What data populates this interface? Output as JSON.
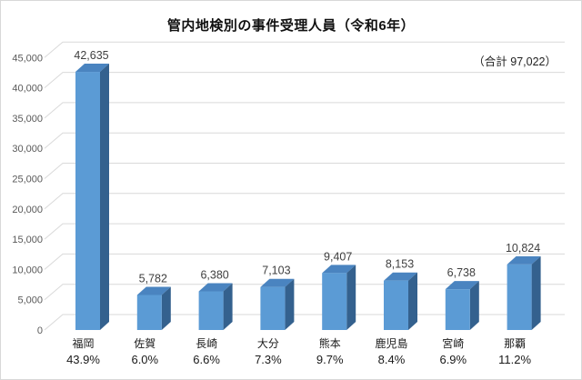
{
  "chart_data": {
    "type": "bar",
    "style": "3d-column",
    "title": "管内地検別の事件受理人員（令和6年）",
    "total": 97022,
    "total_label": "（合計 97,022）",
    "categories": [
      "福岡",
      "佐賀",
      "長崎",
      "大分",
      "熊本",
      "鹿児島",
      "宮崎",
      "那覇"
    ],
    "values": [
      42635,
      5782,
      6380,
      7103,
      9407,
      8153,
      6738,
      10824
    ],
    "value_labels": [
      "42,635",
      "5,782",
      "6,380",
      "7,103",
      "9,407",
      "8,153",
      "6,738",
      "10,824"
    ],
    "percent_labels": [
      "43.9%",
      "6.0%",
      "6.6%",
      "7.3%",
      "9.7%",
      "8.4%",
      "6.9%",
      "11.2%"
    ],
    "xlabel": "",
    "ylabel": "",
    "ylim": [
      0,
      45000
    ],
    "ytick_interval": 5000,
    "ytick_labels": [
      "0",
      "5,000",
      "10,000",
      "15,000",
      "20,000",
      "25,000",
      "30,000",
      "35,000",
      "40,000",
      "45,000"
    ],
    "grid": true,
    "legend": "none",
    "colors": {
      "bar_front": "#5B9BD5",
      "bar_top": "#4A84C0",
      "bar_side": "#34618E",
      "gridline": "#D9D9D9",
      "axis_text": "#595959",
      "label_text": "#1a1a1a",
      "background": "#FFFFFF",
      "border": "#D8D8D8"
    }
  }
}
